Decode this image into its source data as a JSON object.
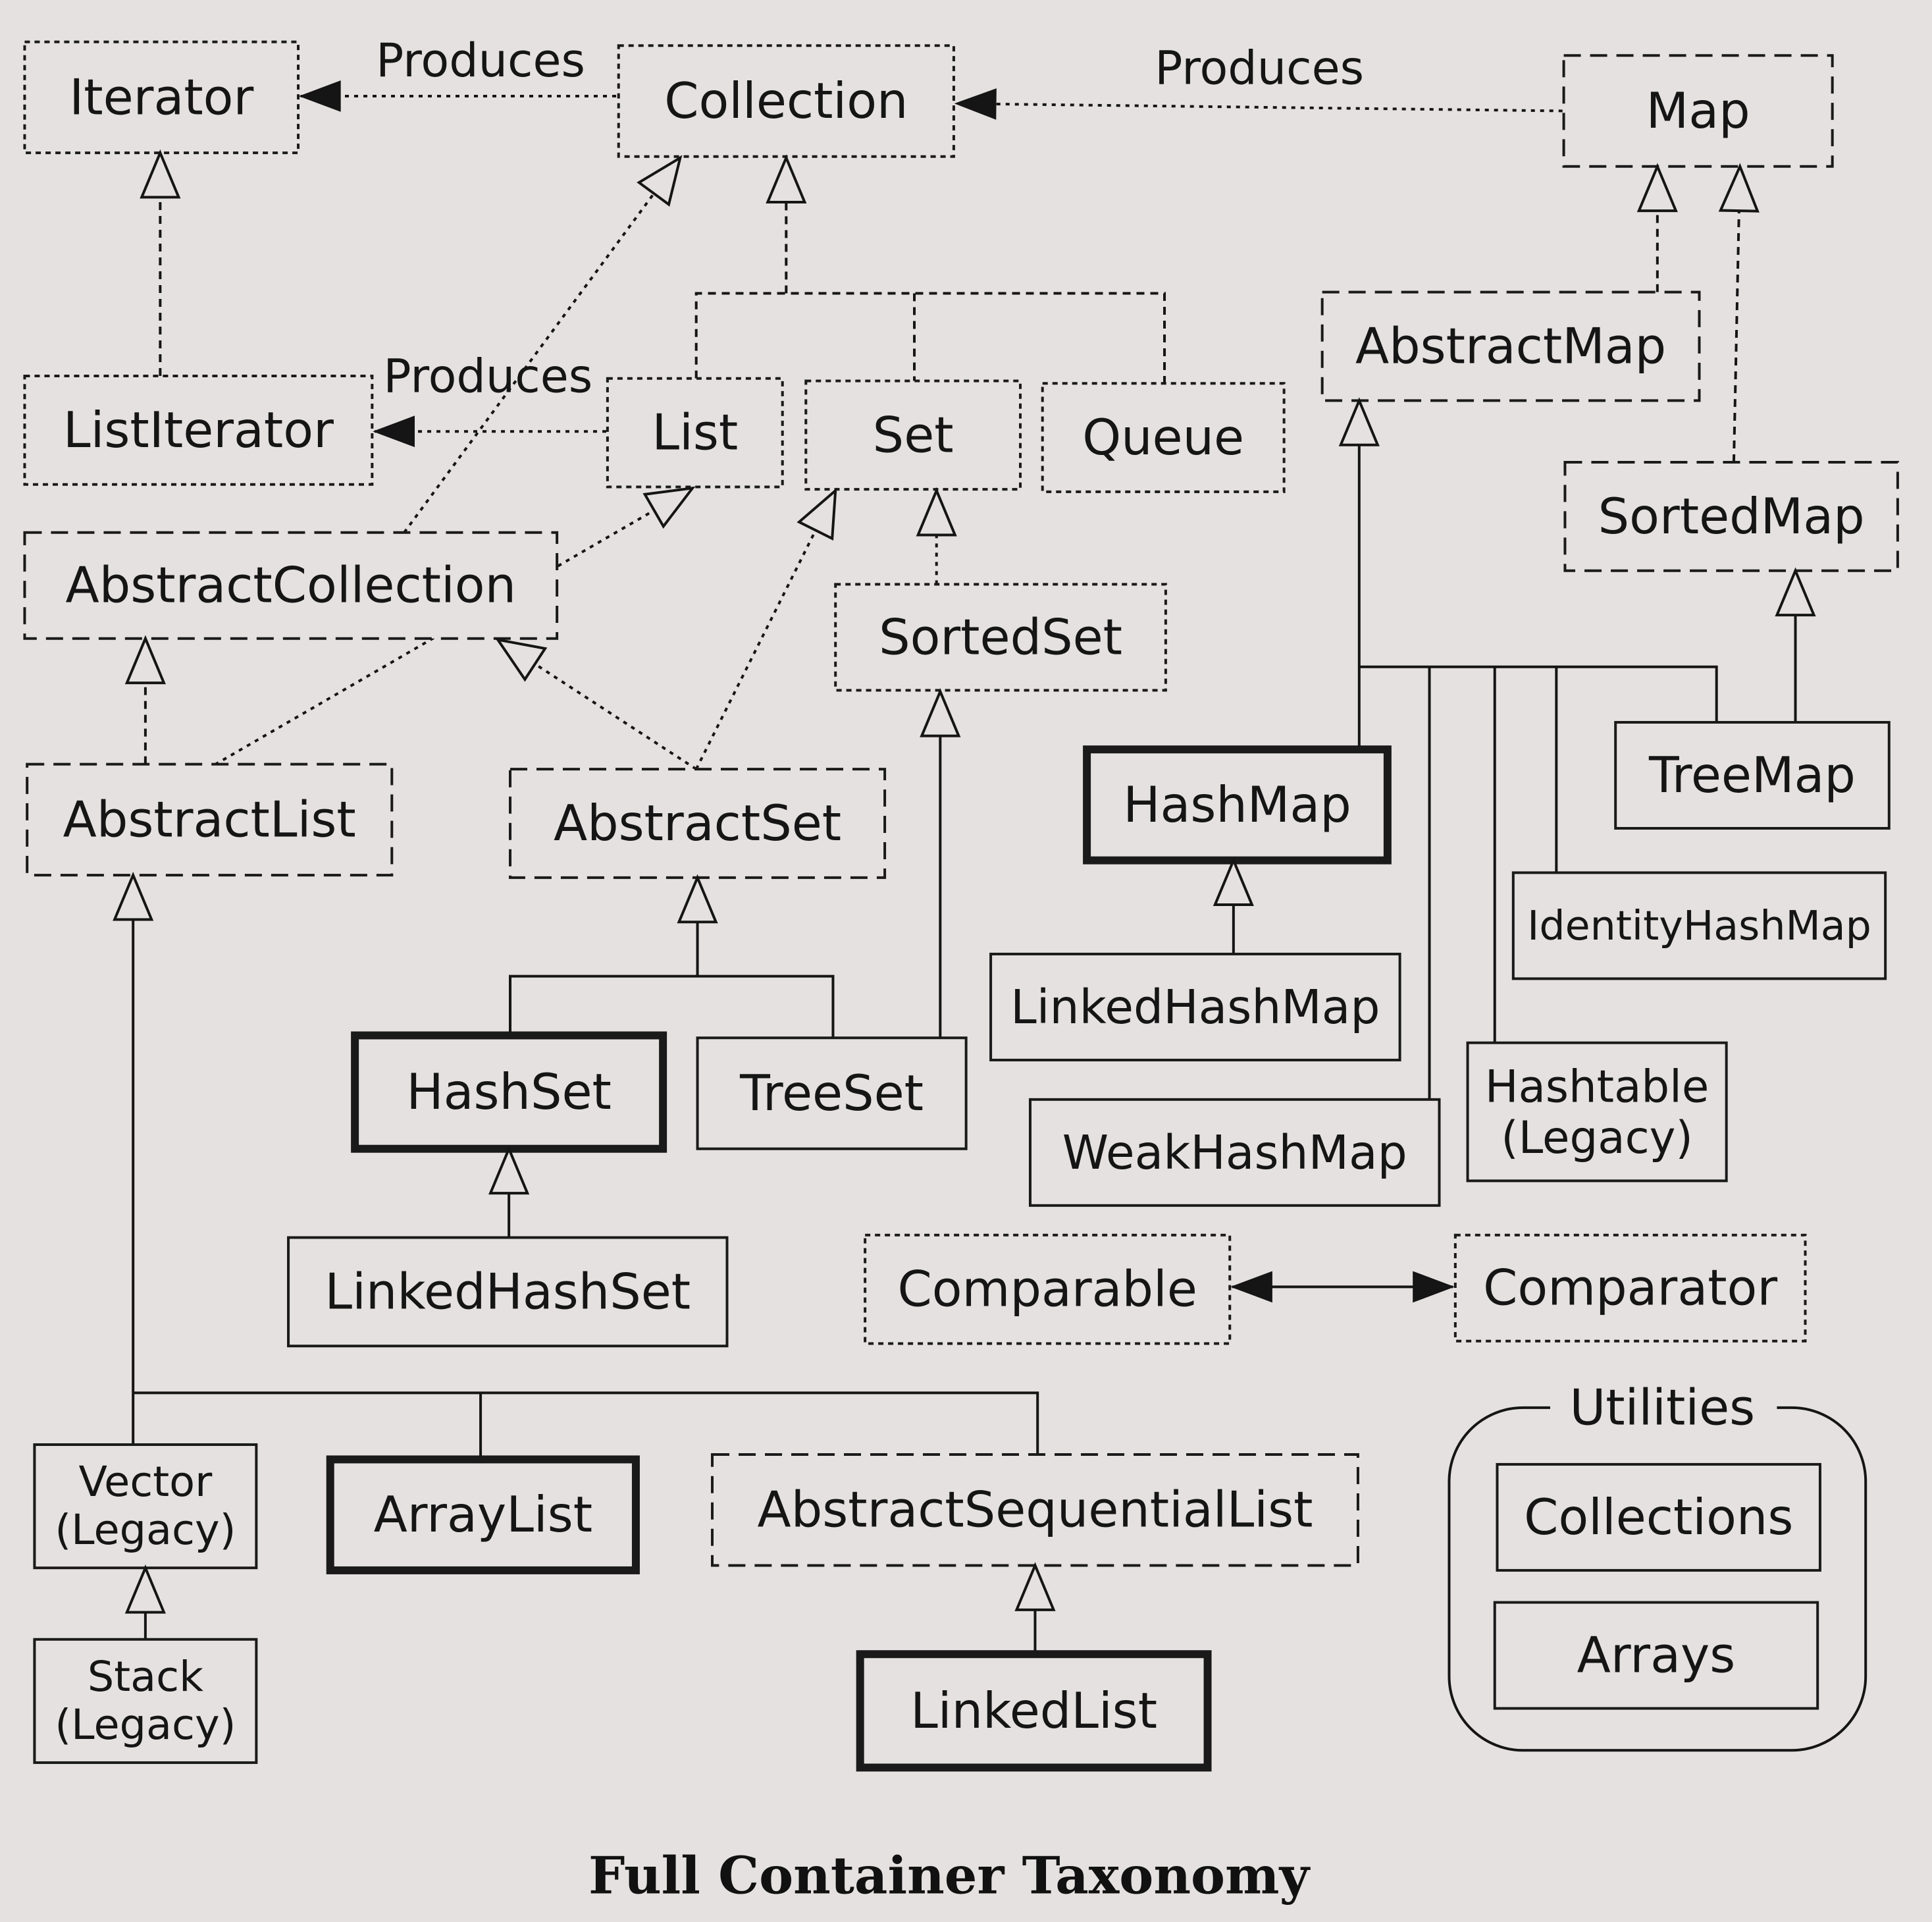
{
  "caption": "Full Container Taxonomy",
  "nodes": {
    "iterator": "Iterator",
    "collection": "Collection",
    "map": "Map",
    "list_iterator": "ListIterator",
    "list": "List",
    "set": "Set",
    "queue": "Queue",
    "abstract_map": "AbstractMap",
    "sorted_map": "SortedMap",
    "abstract_collection": "AbstractCollection",
    "sorted_set": "SortedSet",
    "abstract_list": "AbstractList",
    "abstract_set": "AbstractSet",
    "hash_map": "HashMap",
    "tree_map": "TreeMap",
    "identity_hash_map": "IdentityHashMap",
    "linked_hash_map": "LinkedHashMap",
    "hash_set": "HashSet",
    "tree_set": "TreeSet",
    "hashtable": [
      "Hashtable",
      "(Legacy)"
    ],
    "weak_hash_map": "WeakHashMap",
    "linked_hash_set": "LinkedHashSet",
    "comparable": "Comparable",
    "comparator": "Comparator",
    "vector": [
      "Vector",
      "(Legacy)"
    ],
    "array_list": "ArrayList",
    "abstract_sequential_list": "AbstractSequentialList",
    "stack": [
      "Stack",
      "(Legacy)"
    ],
    "linked_list": "LinkedList",
    "collections": "Collections",
    "arrays": "Arrays"
  },
  "utilities_label": "Utilities",
  "edge_labels": {
    "produces_iterator": "Produces",
    "produces_collection": "Produces",
    "produces_list_iterator": "Produces"
  }
}
